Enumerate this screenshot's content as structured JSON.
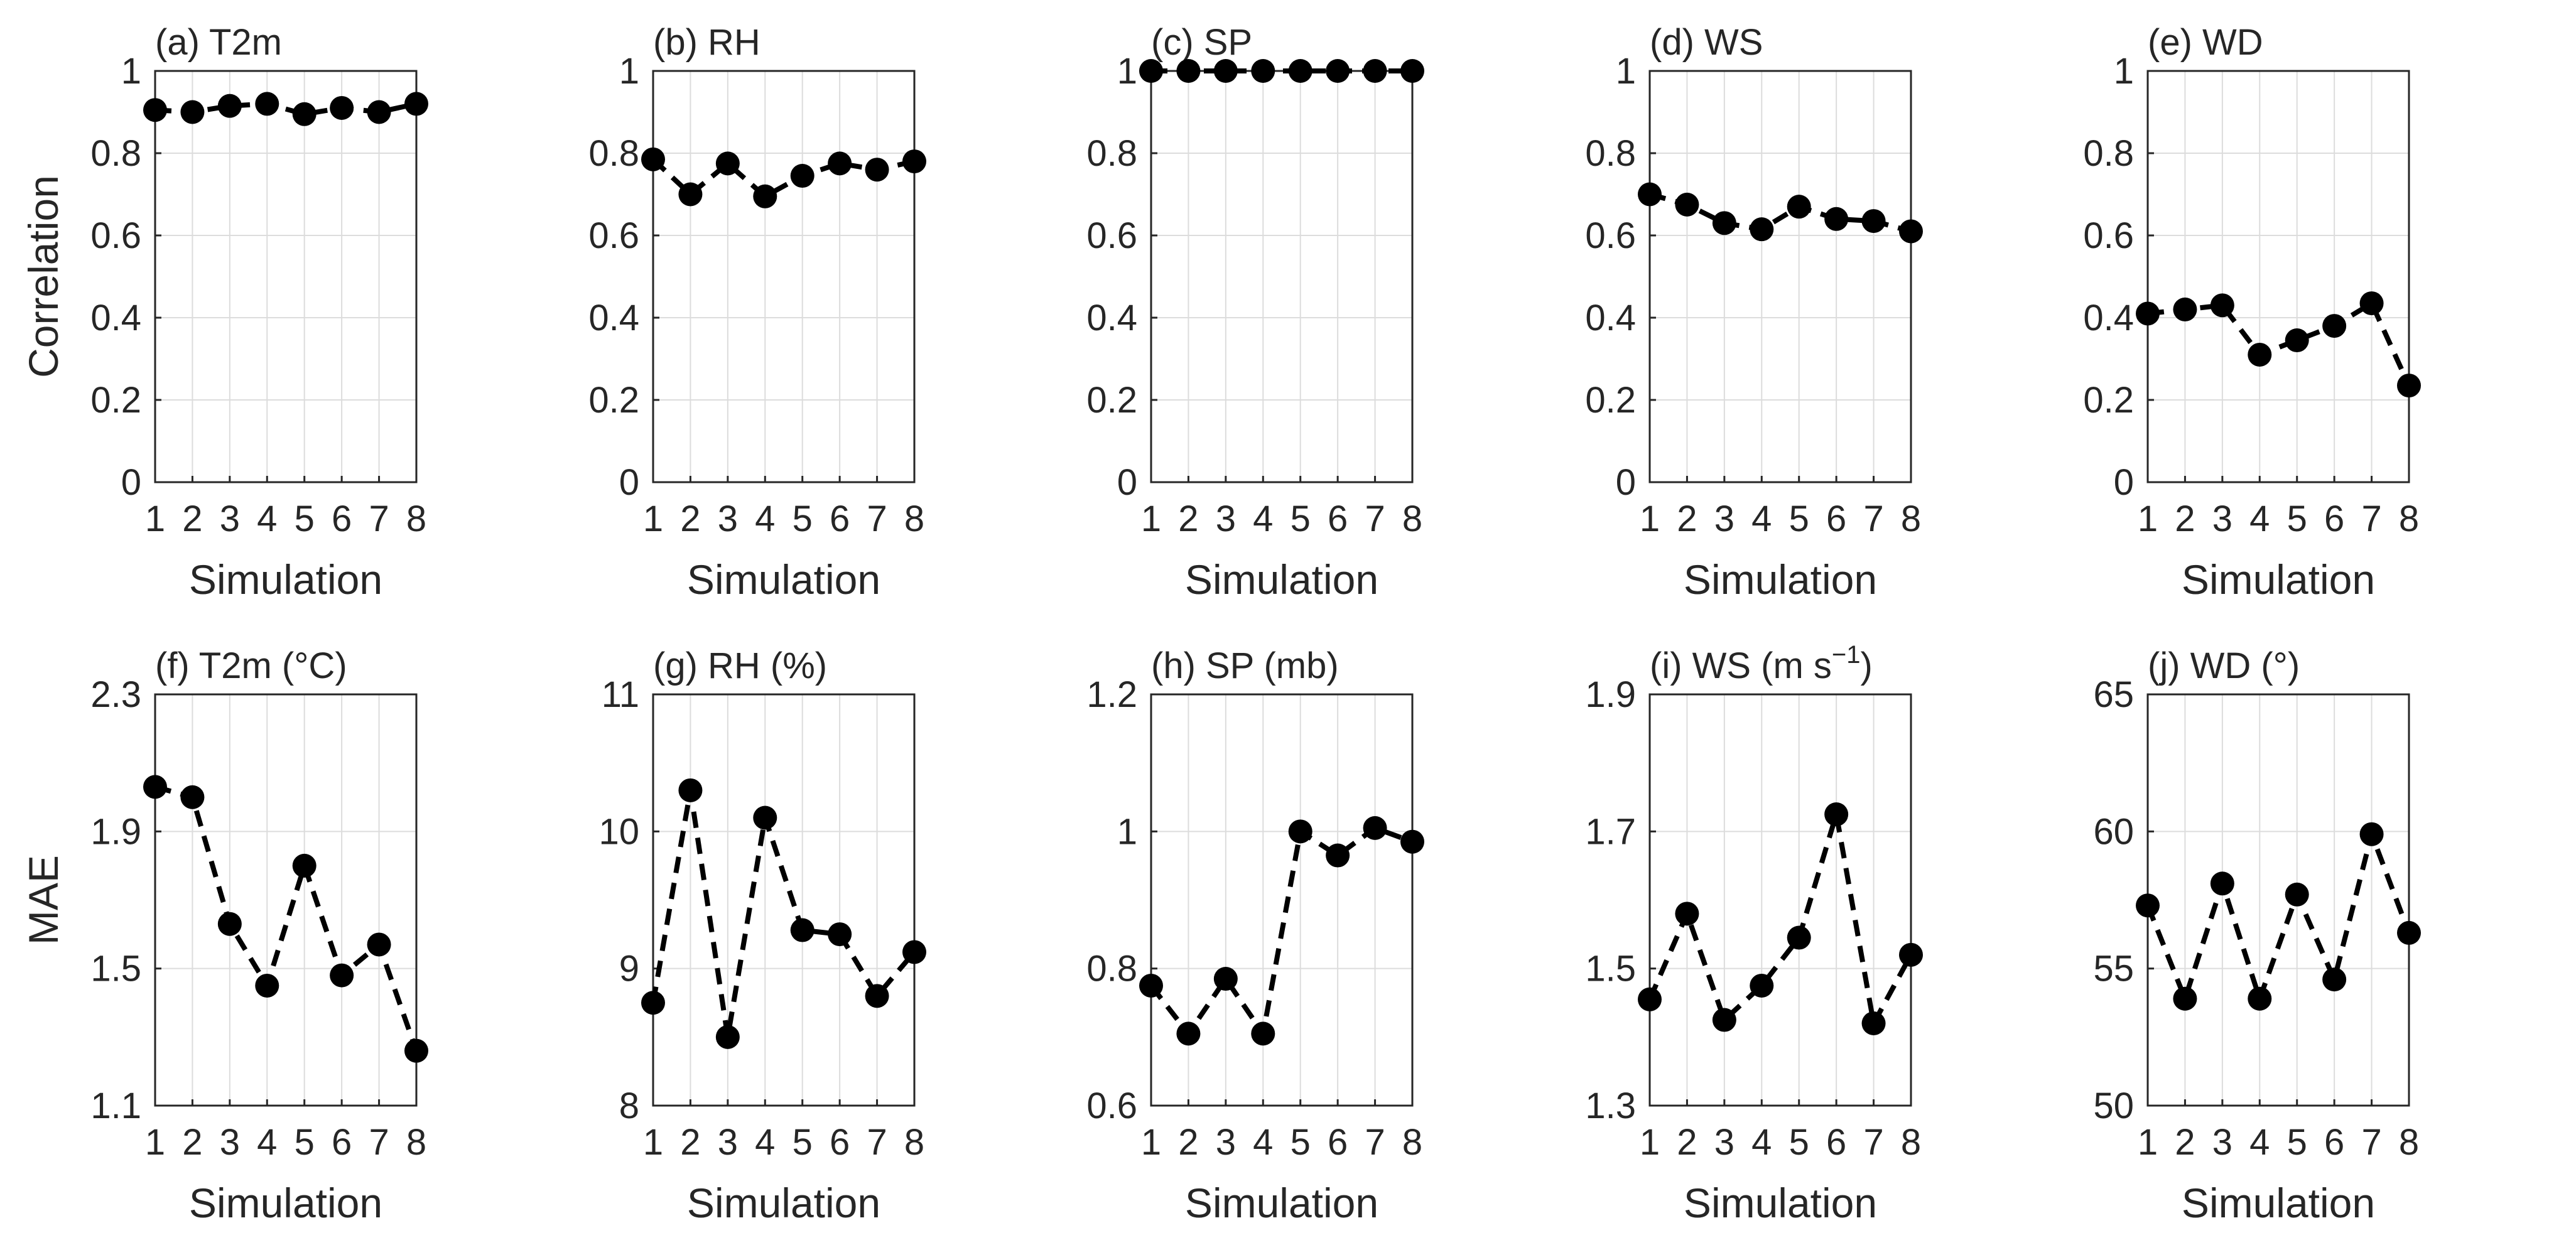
{
  "chart_data": [
    {
      "type": "line",
      "title": "(a) T2m",
      "row": "top",
      "ylabel": "Correlation",
      "xlabel": "Simulation",
      "categories": [
        1,
        2,
        3,
        4,
        5,
        6,
        7,
        8
      ],
      "values": [
        0.905,
        0.9,
        0.915,
        0.92,
        0.895,
        0.91,
        0.9,
        0.92
      ],
      "ylim": [
        0,
        1
      ],
      "yticks": [
        "0",
        "0.2",
        "0.4",
        "0.6",
        "0.8",
        "1"
      ],
      "grid": true
    },
    {
      "type": "line",
      "title": "(b) RH",
      "row": "top",
      "xlabel": "Simulation",
      "categories": [
        1,
        2,
        3,
        4,
        5,
        6,
        7,
        8
      ],
      "values": [
        0.785,
        0.7,
        0.775,
        0.695,
        0.745,
        0.775,
        0.76,
        0.78
      ],
      "ylim": [
        0,
        1
      ],
      "yticks": [
        "0",
        "0.2",
        "0.4",
        "0.6",
        "0.8",
        "1"
      ],
      "grid": true
    },
    {
      "type": "line",
      "title": "(c) SP",
      "row": "top",
      "xlabel": "Simulation",
      "categories": [
        1,
        2,
        3,
        4,
        5,
        6,
        7,
        8
      ],
      "values": [
        1,
        1,
        1,
        1,
        1,
        1,
        1,
        1
      ],
      "ylim": [
        0,
        1
      ],
      "yticks": [
        "0",
        "0.2",
        "0.4",
        "0.6",
        "0.8",
        "1"
      ],
      "grid": true
    },
    {
      "type": "line",
      "title": "(d) WS",
      "row": "top",
      "xlabel": "Simulation",
      "categories": [
        1,
        2,
        3,
        4,
        5,
        6,
        7,
        8
      ],
      "values": [
        0.7,
        0.675,
        0.63,
        0.615,
        0.67,
        0.64,
        0.635,
        0.61
      ],
      "ylim": [
        0,
        1
      ],
      "yticks": [
        "0",
        "0.2",
        "0.4",
        "0.6",
        "0.8",
        "1"
      ],
      "grid": true
    },
    {
      "type": "line",
      "title": "(e) WD",
      "row": "top",
      "xlabel": "Simulation",
      "categories": [
        1,
        2,
        3,
        4,
        5,
        6,
        7,
        8
      ],
      "values": [
        0.41,
        0.42,
        0.43,
        0.31,
        0.345,
        0.38,
        0.435,
        0.235
      ],
      "ylim": [
        0,
        1
      ],
      "yticks": [
        "0",
        "0.2",
        "0.4",
        "0.6",
        "0.8",
        "1"
      ],
      "grid": true
    },
    {
      "type": "line",
      "title": "(f) T2m (°C)",
      "row": "bottom",
      "ylabel": "MAE",
      "xlabel": "Simulation",
      "categories": [
        1,
        2,
        3,
        4,
        5,
        6,
        7,
        8
      ],
      "values": [
        2.03,
        2.0,
        1.63,
        1.45,
        1.8,
        1.48,
        1.57,
        1.26
      ],
      "ylim": [
        1.1,
        2.3
      ],
      "yticks": [
        "1.1",
        "1.5",
        "1.9",
        "2.3"
      ],
      "grid": true
    },
    {
      "type": "line",
      "title": "(g) RH (%)",
      "row": "bottom",
      "xlabel": "Simulation",
      "categories": [
        1,
        2,
        3,
        4,
        5,
        6,
        7,
        8
      ],
      "values": [
        8.75,
        10.3,
        8.5,
        10.1,
        9.28,
        9.25,
        8.8,
        9.12
      ],
      "ylim": [
        8,
        11
      ],
      "yticks": [
        "8",
        "9",
        "10",
        "11"
      ],
      "grid": true
    },
    {
      "type": "line",
      "title": "(h) SP (mb)",
      "row": "bottom",
      "xlabel": "Simulation",
      "categories": [
        1,
        2,
        3,
        4,
        5,
        6,
        7,
        8
      ],
      "values": [
        0.775,
        0.705,
        0.785,
        0.705,
        1.0,
        0.965,
        1.005,
        0.985
      ],
      "ylim": [
        0.6,
        1.2
      ],
      "yticks": [
        "0.6",
        "0.8",
        "1",
        "1.2"
      ],
      "grid": true
    },
    {
      "type": "line",
      "title": "(i) WS (m s",
      "title_sup": "−1",
      "title_end": ")",
      "row": "bottom",
      "xlabel": "Simulation",
      "categories": [
        1,
        2,
        3,
        4,
        5,
        6,
        7,
        8
      ],
      "values": [
        1.455,
        1.58,
        1.425,
        1.475,
        1.545,
        1.725,
        1.42,
        1.52
      ],
      "ylim": [
        1.3,
        1.9
      ],
      "yticks": [
        "1.3",
        "1.5",
        "1.7",
        "1.9"
      ],
      "grid": true
    },
    {
      "type": "line",
      "title": "(j) WD (°)",
      "row": "bottom",
      "xlabel": "Simulation",
      "categories": [
        1,
        2,
        3,
        4,
        5,
        6,
        7,
        8
      ],
      "values": [
        57.3,
        53.9,
        58.1,
        53.9,
        57.7,
        54.6,
        59.9,
        56.3
      ],
      "ylim": [
        50,
        65
      ],
      "yticks": [
        "50",
        "55",
        "60",
        "65"
      ],
      "grid": true
    }
  ]
}
